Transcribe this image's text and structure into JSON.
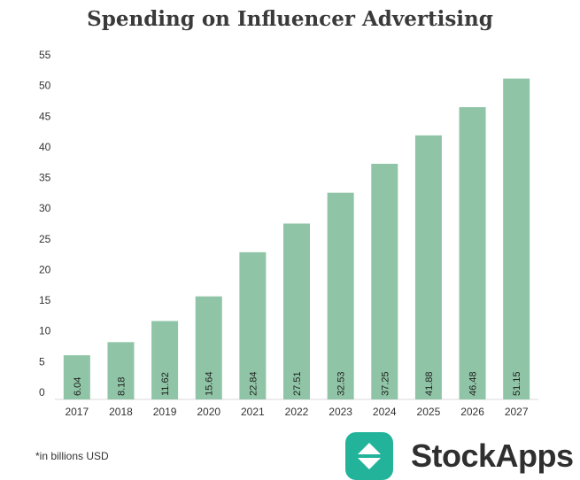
{
  "chart_data": {
    "type": "bar",
    "title": "Spending on Influencer Advertising",
    "categories": [
      "2017",
      "2018",
      "2019",
      "2020",
      "2021",
      "2022",
      "2023",
      "2024",
      "2025",
      "2026",
      "2027"
    ],
    "values": [
      6.04,
      8.18,
      11.62,
      15.64,
      22.84,
      27.51,
      32.53,
      37.25,
      41.88,
      46.48,
      51.15
    ],
    "value_labels": [
      "6.04",
      "8.18",
      "11.62",
      "15.64",
      "22.84",
      "27.51",
      "32.53",
      "37.25",
      "41.88",
      "46.48",
      "51.15"
    ],
    "yticks": [
      "0",
      "5",
      "10",
      "15",
      "20",
      "25",
      "30",
      "35",
      "40",
      "45",
      "50",
      "55"
    ],
    "ylim": [
      0,
      55
    ],
    "xlabel": "",
    "ylabel": "",
    "grid": false,
    "bar_color": "#8fc4a6"
  },
  "footnote": "*in billions USD",
  "brand": {
    "name": "StockApps",
    "icon": "up-down-arrows-icon",
    "icon_color": "#22b39a"
  }
}
